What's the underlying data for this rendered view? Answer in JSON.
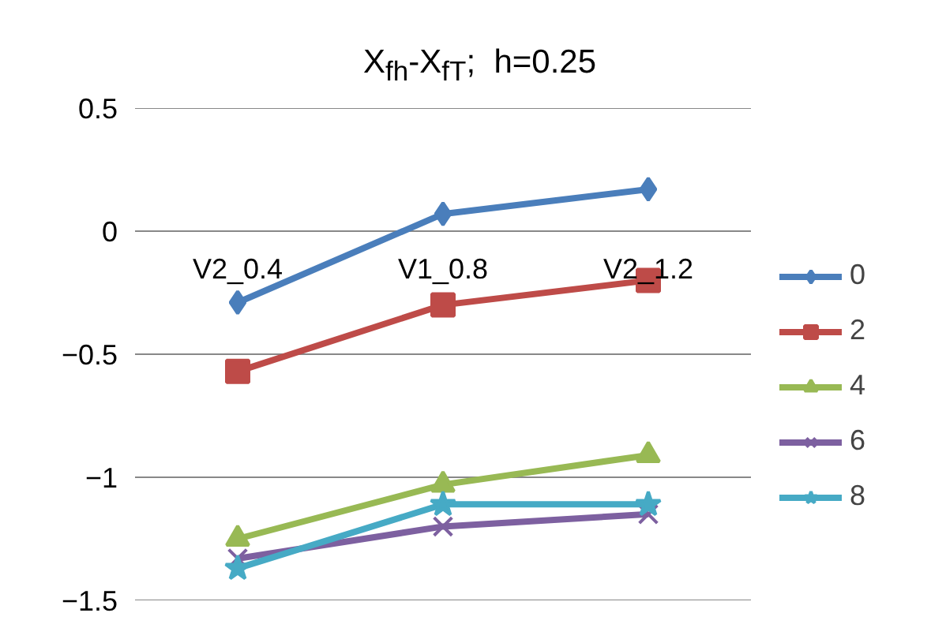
{
  "chart_data": {
    "type": "line",
    "title": "X$_{fh}$-X$_{fT}$;  h=0.25",
    "categories": [
      "V2_0.4",
      "V1_0.8",
      "V2_1.2"
    ],
    "series": [
      {
        "name": "0",
        "color": "#4a7ebb",
        "marker": "diamond",
        "values": [
          -0.29,
          0.07,
          0.17
        ]
      },
      {
        "name": "2",
        "color": "#be4b48",
        "marker": "square",
        "values": [
          -0.57,
          -0.3,
          -0.2
        ]
      },
      {
        "name": "4",
        "color": "#98b954",
        "marker": "triangle",
        "values": [
          -1.25,
          -1.03,
          -0.91
        ]
      },
      {
        "name": "6",
        "color": "#7d60a0",
        "marker": "cross",
        "values": [
          -1.33,
          -1.2,
          -1.15
        ]
      },
      {
        "name": "8",
        "color": "#46aac5",
        "marker": "star",
        "values": [
          -1.37,
          -1.11,
          -1.11
        ]
      }
    ],
    "ylim": [
      -1.5,
      0.5
    ],
    "yticks": [
      -1.5,
      -1,
      -0.5,
      0,
      0.5
    ],
    "grid": "y",
    "legend": "right",
    "line_style": "solid"
  }
}
